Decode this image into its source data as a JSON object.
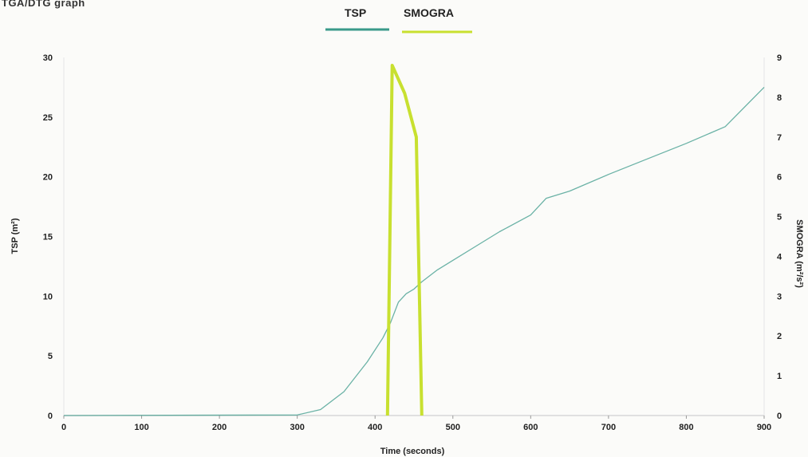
{
  "caption": "TGA/DTG graph",
  "chart_data": {
    "type": "line",
    "title": "",
    "xlabel": "Time (seconds)",
    "ylabel_left": "TSP (m²)",
    "ylabel_right": "SMOGRA (m²/s²)",
    "xlim": [
      0,
      900
    ],
    "ylim_left": [
      0,
      30
    ],
    "ylim_right": [
      0,
      9
    ],
    "x_ticks": [
      0,
      100,
      200,
      300,
      400,
      500,
      600,
      700,
      800,
      900
    ],
    "y_ticks_left": [
      0,
      5,
      10,
      15,
      20,
      25,
      30
    ],
    "y_ticks_right": [
      0,
      1,
      2,
      3,
      4,
      5,
      6,
      7,
      8,
      9
    ],
    "grid": false,
    "legend": "top-center",
    "series": [
      {
        "name": "TSP",
        "axis": "left",
        "color": "#3a9a8a",
        "x": [
          0,
          300,
          330,
          360,
          390,
          410,
          420,
          430,
          440,
          450,
          460,
          480,
          500,
          530,
          560,
          600,
          620,
          650,
          700,
          750,
          800,
          850,
          900
        ],
        "y": [
          0,
          0.05,
          0.5,
          2,
          4.5,
          6.5,
          7.8,
          9.5,
          10.2,
          10.6,
          11.2,
          12.2,
          13.0,
          14.2,
          15.4,
          16.8,
          18.2,
          18.8,
          20.2,
          21.5,
          22.8,
          24.2,
          27.5
        ]
      },
      {
        "name": "SMOGRA",
        "axis": "right",
        "color": "#c8e030",
        "x": [
          416,
          422,
          438,
          453,
          453,
          460,
          460
        ],
        "y": [
          0,
          8.8,
          8.1,
          7.0,
          7.0,
          0,
          0
        ]
      }
    ]
  }
}
